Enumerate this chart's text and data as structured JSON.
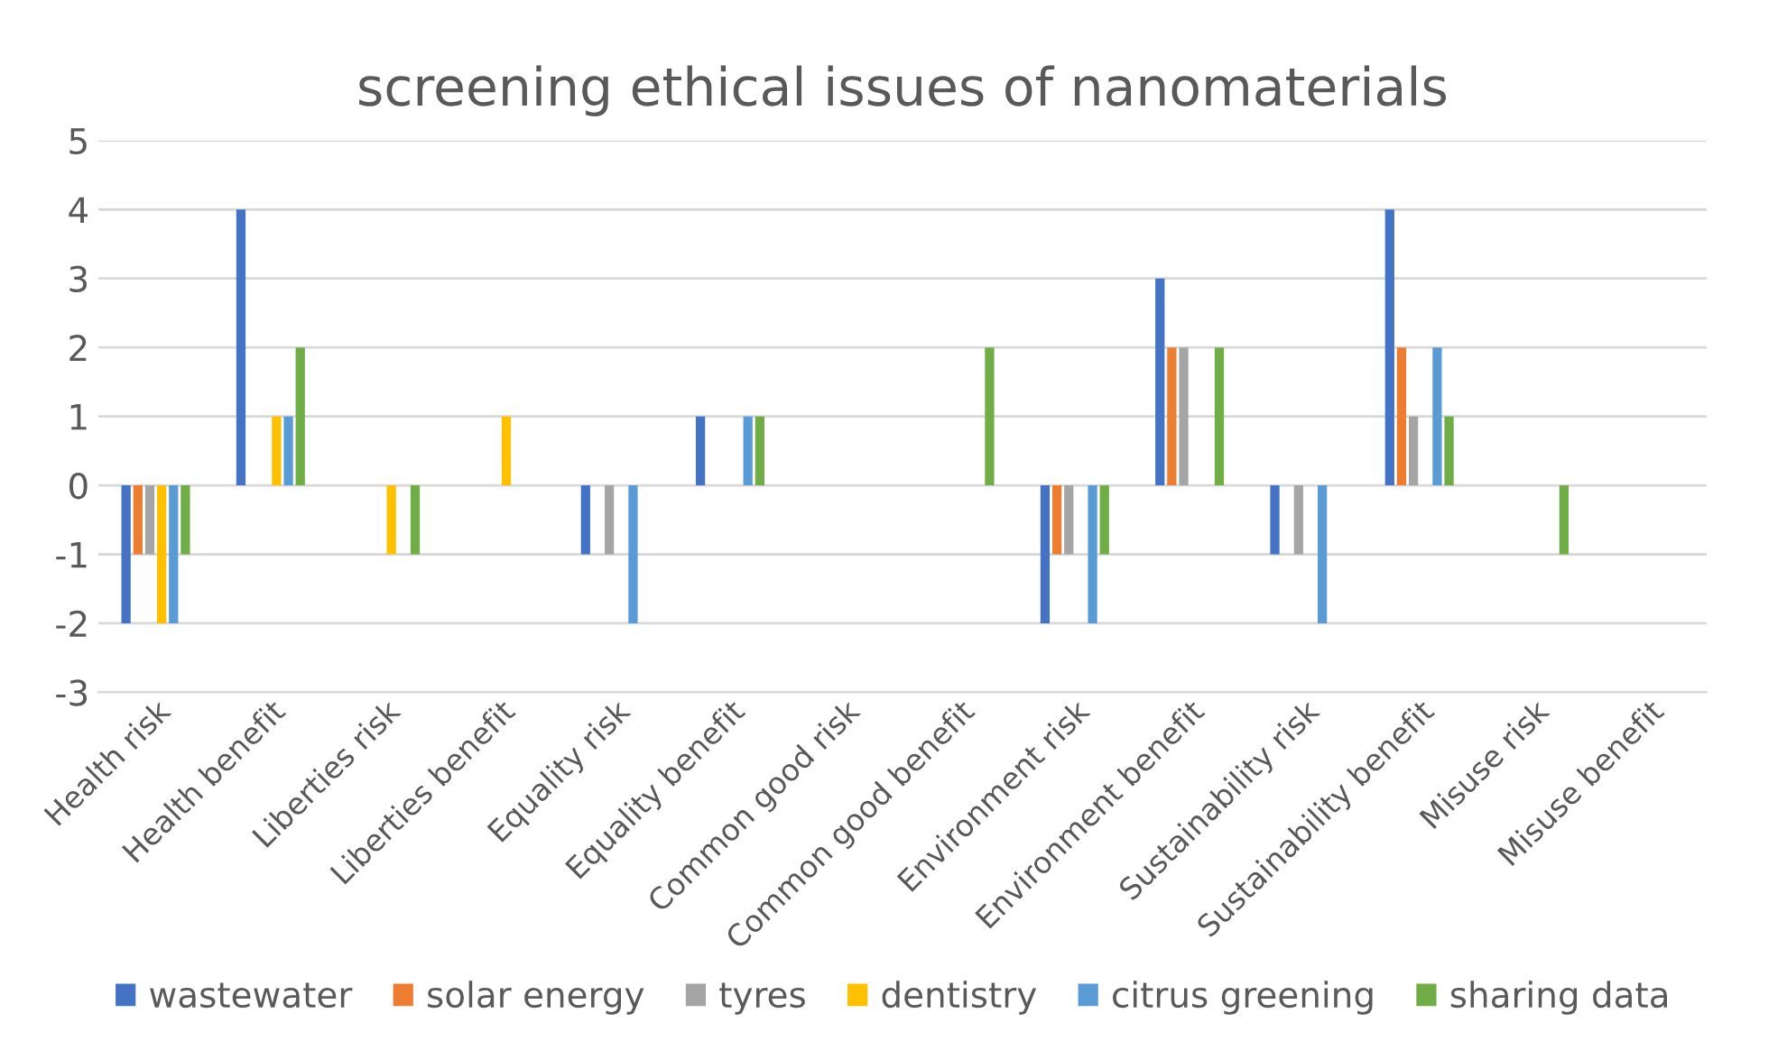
{
  "chart_data": {
    "type": "bar",
    "title": "screening ethical issues of nanomaterials",
    "categories": [
      "Health risk",
      "Health benefit",
      "Liberties risk",
      "Liberties benefit",
      "Equality risk",
      "Equality benefit",
      "Common good risk",
      "Common good benefit",
      "Environment risk",
      "Environment benefit",
      "Sustainability risk",
      "Sustainability benefit",
      "Misuse risk",
      "Misuse benefit"
    ],
    "series": [
      {
        "name": "wastewater",
        "color": "#4472c4",
        "values": [
          -2,
          4,
          0,
          0,
          -1,
          1,
          0,
          0,
          -2,
          3,
          -1,
          4,
          0,
          0
        ]
      },
      {
        "name": "solar energy",
        "color": "#ed7d31",
        "values": [
          -1,
          0,
          0,
          0,
          0,
          0,
          0,
          0,
          -1,
          2,
          0,
          2,
          0,
          0
        ]
      },
      {
        "name": "tyres",
        "color": "#a5a5a5",
        "values": [
          -1,
          0,
          0,
          0,
          -1,
          0,
          0,
          0,
          -1,
          2,
          -1,
          1,
          0,
          0
        ]
      },
      {
        "name": "dentistry",
        "color": "#ffc000",
        "values": [
          -2,
          1,
          -1,
          1,
          0,
          0,
          0,
          0,
          0,
          0,
          0,
          0,
          0,
          0
        ]
      },
      {
        "name": "citrus greening",
        "color": "#5b9bd5",
        "values": [
          -2,
          1,
          0,
          0,
          -2,
          1,
          0,
          0,
          -2,
          0,
          -2,
          2,
          0,
          0
        ]
      },
      {
        "name": "sharing data",
        "color": "#70ad47",
        "values": [
          -1,
          2,
          -1,
          0,
          0,
          1,
          0,
          2,
          -1,
          2,
          0,
          1,
          -1,
          0
        ]
      }
    ],
    "ylim": [
      -3,
      5
    ],
    "yticks": [
      -3,
      -2,
      -1,
      0,
      1,
      2,
      3,
      4,
      5
    ],
    "grid": "y",
    "legend": "bottom"
  }
}
